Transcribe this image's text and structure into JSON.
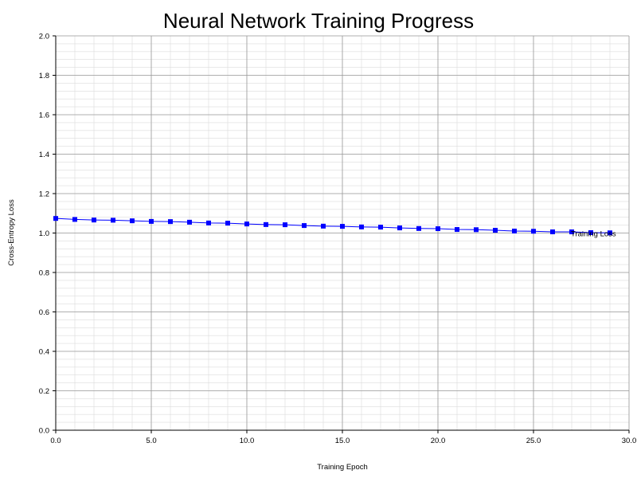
{
  "chart_data": {
    "type": "line",
    "title": "Neural Network Training Progress",
    "xlabel": "Training Epoch",
    "ylabel": "Cross-Entropy Loss",
    "xlim": [
      0,
      30
    ],
    "ylim": [
      0,
      2
    ],
    "x_ticks": [
      "0.0",
      "5.0",
      "10.0",
      "15.0",
      "20.0",
      "25.0",
      "30.0"
    ],
    "x_tick_values": [
      0,
      5,
      10,
      15,
      20,
      25,
      30
    ],
    "y_ticks": [
      "0.0",
      "0.2",
      "0.4",
      "0.6",
      "0.8",
      "1.0",
      "1.2",
      "1.4",
      "1.6",
      "1.8",
      "2.0"
    ],
    "y_tick_values": [
      0,
      0.2,
      0.4,
      0.6,
      0.8,
      1.0,
      1.2,
      1.4,
      1.6,
      1.8,
      2.0
    ],
    "grid": true,
    "minor_grid": true,
    "series": [
      {
        "name": "Training Loss",
        "color": "#0000ff",
        "marker": "square",
        "x": [
          0,
          1,
          2,
          3,
          4,
          5,
          6,
          7,
          8,
          9,
          10,
          11,
          12,
          13,
          14,
          15,
          16,
          17,
          18,
          19,
          20,
          21,
          22,
          23,
          24,
          25,
          26,
          27,
          28,
          29
        ],
        "values": [
          1.074,
          1.069,
          1.066,
          1.065,
          1.062,
          1.059,
          1.058,
          1.055,
          1.051,
          1.05,
          1.046,
          1.043,
          1.042,
          1.038,
          1.035,
          1.034,
          1.031,
          1.03,
          1.026,
          1.023,
          1.022,
          1.018,
          1.017,
          1.014,
          1.01,
          1.009,
          1.006,
          1.006,
          1.002,
          1.001
        ]
      }
    ]
  }
}
